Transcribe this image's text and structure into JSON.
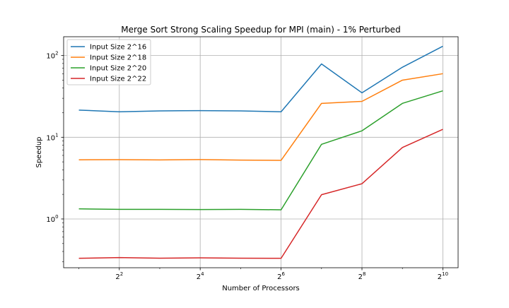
{
  "chart_data": {
    "type": "line",
    "title": "Merge Sort Strong Scaling Speedup for MPI (main) - 1% Perturbed",
    "xlabel": "Number of Processors",
    "ylabel": "Speedup",
    "xscale": "log2",
    "yscale": "log10",
    "x": [
      2,
      4,
      8,
      16,
      32,
      64,
      128,
      256,
      512,
      1024
    ],
    "xlim": [
      1.54,
      1330
    ],
    "ylim": [
      0.253,
      170
    ],
    "xticks": [
      {
        "value": 4,
        "base": "2",
        "exp": "2"
      },
      {
        "value": 16,
        "base": "2",
        "exp": "4"
      },
      {
        "value": 64,
        "base": "2",
        "exp": "6"
      },
      {
        "value": 256,
        "base": "2",
        "exp": "8"
      },
      {
        "value": 1024,
        "base": "2",
        "exp": "10"
      }
    ],
    "yticks": [
      {
        "value": 1,
        "base": "10",
        "exp": "0"
      },
      {
        "value": 10,
        "base": "10",
        "exp": "1"
      },
      {
        "value": 100,
        "base": "10",
        "exp": "2"
      }
    ],
    "grid": true,
    "legend_position": "top-left",
    "series": [
      {
        "name": "Input Size 2^16",
        "color": "#1f77b4",
        "values": [
          21.5,
          20.5,
          21.0,
          21.2,
          21.0,
          20.5,
          79.0,
          35.0,
          72.0,
          130.0
        ]
      },
      {
        "name": "Input Size 2^18",
        "color": "#ff7f0e",
        "values": [
          5.3,
          5.32,
          5.28,
          5.33,
          5.26,
          5.22,
          26.0,
          27.5,
          50.0,
          60.0
        ]
      },
      {
        "name": "Input Size 2^20",
        "color": "#2ca02c",
        "values": [
          1.33,
          1.31,
          1.31,
          1.305,
          1.31,
          1.295,
          8.2,
          12.0,
          26.0,
          37.0
        ]
      },
      {
        "name": "Input Size 2^22",
        "color": "#d62728",
        "values": [
          0.33,
          0.337,
          0.331,
          0.334,
          0.331,
          0.33,
          1.98,
          2.7,
          7.5,
          12.5
        ]
      }
    ]
  }
}
